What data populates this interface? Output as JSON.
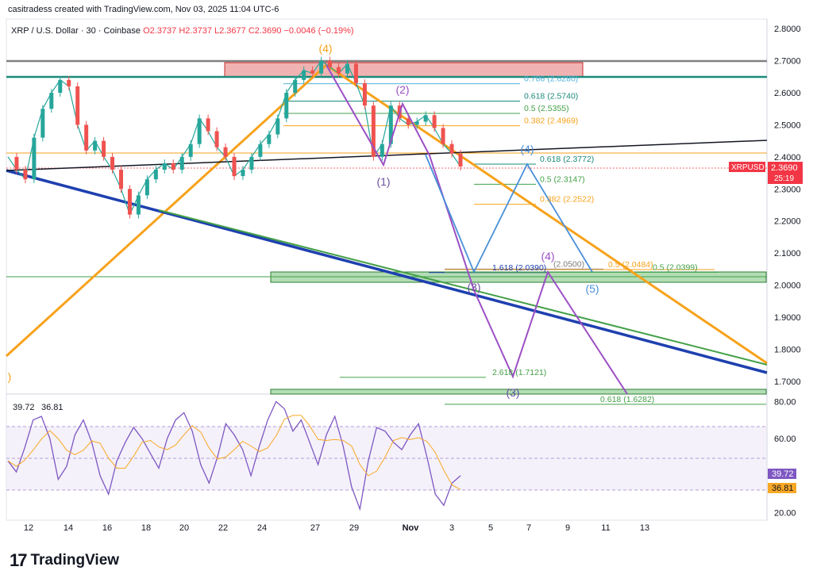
{
  "header": {
    "credit": "casitradess created with TradingView.com, Nov 03, 2025 11:04 UTC-6"
  },
  "symbol": {
    "name": "XRP / U.S. Dollar · 30 · Coinbase",
    "open": "O2.3737",
    "high": "H2.3737",
    "low": "L2.3677",
    "close": "C2.3690",
    "change": "−0.0046 (−0.19%)"
  },
  "price_tag": {
    "ticker": "XRPUSD",
    "price": "2.3690",
    "timer": "25:19"
  },
  "rsi_tags": {
    "rsi": "39.72",
    "ma": "36.81"
  },
  "footer": {
    "brand": "TradingView"
  },
  "colors": {
    "orange": "#f7a21b",
    "blue": "#1e40af",
    "green": "#43a047",
    "purple": "#9c4fc4",
    "light_blue": "#4a90d9",
    "teal": "#1b8a7a",
    "red_zone": "#e57373",
    "rsi_line": "#7e57c2"
  },
  "chart_data": {
    "type": "line",
    "price_axis": {
      "ticks": [
        "2.8000",
        "2.7000",
        "2.6000",
        "2.5000",
        "2.4000",
        "2.3000",
        "2.2000",
        "2.1000",
        "2.0000",
        "1.9000",
        "1.8000",
        "1.7000"
      ],
      "ylim": [
        1.66,
        2.83
      ]
    },
    "rsi_axis": {
      "ticks": [
        "80.00",
        "60.00",
        "40.00",
        "20.00"
      ],
      "ylim": [
        16,
        84
      ]
    },
    "x_axis": {
      "ticks": [
        "12",
        "14",
        "16",
        "18",
        "20",
        "22",
        "24",
        "27",
        "29",
        "Nov",
        "3",
        "5",
        "7",
        "9",
        "11",
        "13"
      ]
    },
    "price_series": {
      "name": "XRPUSD",
      "values": [
        2.4,
        2.36,
        2.33,
        2.46,
        2.55,
        2.6,
        2.64,
        2.62,
        2.5,
        2.42,
        2.45,
        2.4,
        2.36,
        2.3,
        2.22,
        2.28,
        2.33,
        2.36,
        2.38,
        2.36,
        2.4,
        2.44,
        2.52,
        2.48,
        2.43,
        2.4,
        2.34,
        2.36,
        2.4,
        2.44,
        2.47,
        2.52,
        2.6,
        2.64,
        2.67,
        2.66,
        2.7,
        2.68,
        2.66,
        2.69,
        2.63,
        2.56,
        2.4,
        2.44,
        2.56,
        2.52,
        2.5,
        2.51,
        2.53,
        2.49,
        2.44,
        2.41,
        2.37
      ]
    },
    "fib_levels": [
      {
        "label": "0.786 (2.6280)",
        "value": 2.628
      },
      {
        "label": "0.618 (2.5740)",
        "value": 2.574
      },
      {
        "label": "0.5 (2.5355)",
        "value": 2.5355
      },
      {
        "label": "0.382 (2.4969)",
        "value": 2.4969
      },
      {
        "label": "0.618 (2.3772)",
        "value": 2.3772
      },
      {
        "label": "0.5 (2.3147)",
        "value": 2.3147
      },
      {
        "label": "0.382 (2.2522)",
        "value": 2.2522
      },
      {
        "label": "1.618 (2.0390)",
        "value": 2.039
      },
      {
        "label": "(2.0500)",
        "value": 2.05
      },
      {
        "label": "0.5 (2.0484)",
        "value": 2.0484
      },
      {
        "label": "0.5 (2.0399)",
        "value": 2.0399
      },
      {
        "label": "2.618 (1.7121)",
        "value": 1.7121
      },
      {
        "label": "0.618 (1.6282)",
        "value": 1.6282
      }
    ],
    "wave_labels": [
      "(4)",
      "(2)",
      "(1)",
      "(4)",
      "(3)",
      "(5)",
      "(4)",
      "(3)",
      ")"
    ],
    "rsi_series": {
      "values": [
        48,
        42,
        55,
        70,
        72,
        60,
        38,
        45,
        62,
        70,
        58,
        40,
        30,
        48,
        58,
        66,
        60,
        52,
        44,
        60,
        70,
        74,
        64,
        46,
        36,
        50,
        68,
        62,
        54,
        40,
        56,
        70,
        80,
        76,
        64,
        70,
        58,
        46,
        62,
        72,
        56,
        34,
        22,
        48,
        66,
        64,
        58,
        54,
        62,
        68,
        50,
        30,
        24,
        36,
        40
      ]
    }
  }
}
